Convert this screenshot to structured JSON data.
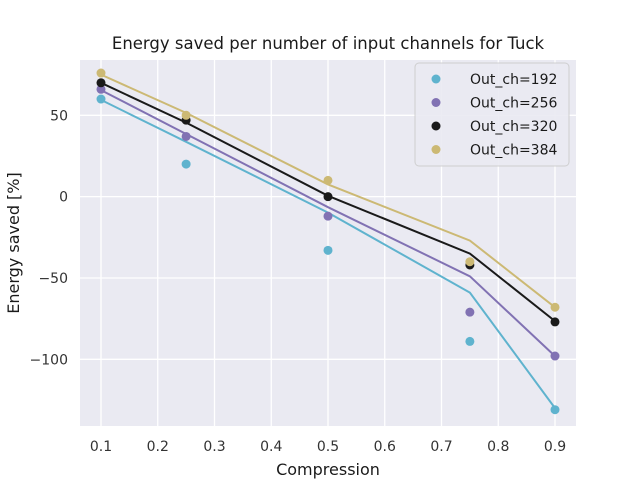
{
  "chart_data": {
    "type": "scatter",
    "title": "Energy saved per number of input channels for Tuck",
    "xlabel": "Compression",
    "ylabel": "Energy saved [%]",
    "xlim": [
      0.063,
      0.937
    ],
    "ylim": [
      -141,
      84
    ],
    "xticks": [
      "0.1",
      "0.2",
      "0.3",
      "0.4",
      "0.5",
      "0.6",
      "0.7",
      "0.8",
      "0.9"
    ],
    "yticks": [
      "50",
      "0",
      "−50",
      "−100"
    ],
    "ytick_values": [
      50,
      0,
      -50,
      -100
    ],
    "xtick_values": [
      0.1,
      0.2,
      0.3,
      0.4,
      0.5,
      0.6,
      0.7,
      0.8,
      0.9
    ],
    "grid": true,
    "legend_position": "top-right",
    "x": [
      0.1,
      0.25,
      0.5,
      0.75,
      0.9
    ],
    "series": [
      {
        "name": "Out_ch=192",
        "color": "#5fb3ce",
        "values": [
          60,
          20,
          -33,
          -89,
          -131
        ],
        "fit": [
          59.5,
          33.7,
          -9.8,
          -59.0,
          -130.0
        ]
      },
      {
        "name": "Out_ch=256",
        "color": "#8172b3",
        "values": [
          66,
          37,
          -12,
          -71,
          -98
        ],
        "fit": [
          65.5,
          38.5,
          -6.5,
          -49.0,
          -98.0
        ]
      },
      {
        "name": "Out_ch=320",
        "color": "#1a1a1a",
        "values": [
          70,
          47,
          0,
          -42,
          -77
        ],
        "fit": [
          70.0,
          45.5,
          0.5,
          -35.0,
          -76.5
        ]
      },
      {
        "name": "Out_ch=384",
        "color": "#ccb974",
        "values": [
          76,
          50,
          10,
          -40,
          -68
        ],
        "fit": [
          75.0,
          51.5,
          7.5,
          -27.0,
          -68.0
        ]
      }
    ]
  }
}
